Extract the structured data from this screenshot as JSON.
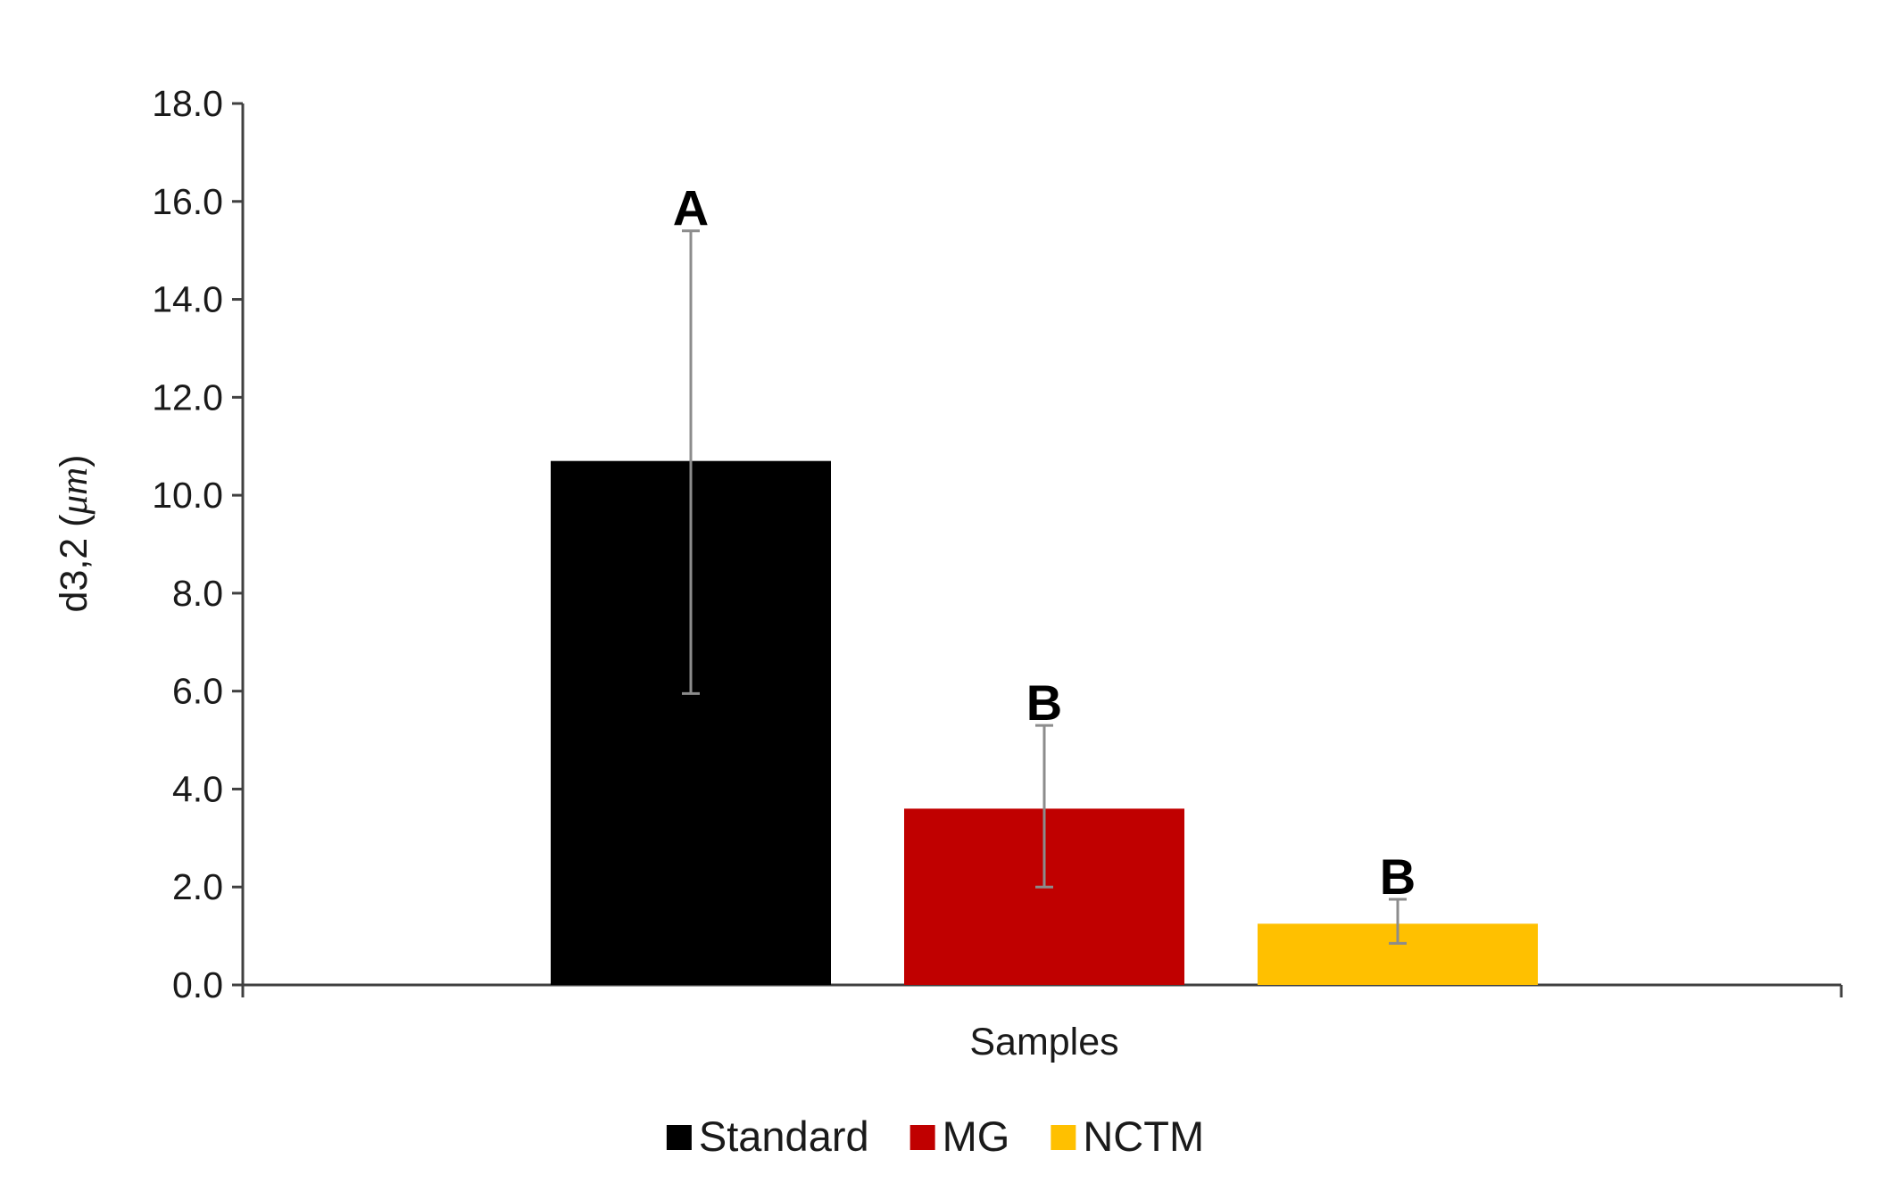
{
  "chart_data": {
    "type": "bar",
    "xlabel": "Samples",
    "ylabel": "d3,2 (",
    "ylabel_unit": "μm",
    "ylabel_close": ")",
    "ylim": [
      0,
      18
    ],
    "yticks": [
      "0.0",
      "2.0",
      "4.0",
      "6.0",
      "8.0",
      "10.0",
      "12.0",
      "14.0",
      "16.0",
      "18.0"
    ],
    "grid": false,
    "legend_position": "bottom",
    "series": [
      {
        "name": "Standard",
        "value": 10.7,
        "error_low": 5.95,
        "error_high": 15.4,
        "color": "#000000",
        "significance": "A"
      },
      {
        "name": "MG",
        "value": 3.6,
        "error_low": 2.0,
        "error_high": 5.3,
        "color": "#c00000",
        "significance": "B"
      },
      {
        "name": "NCTM",
        "value": 1.25,
        "error_low": 0.85,
        "error_high": 1.75,
        "color": "#ffc000",
        "significance": "B"
      }
    ]
  }
}
